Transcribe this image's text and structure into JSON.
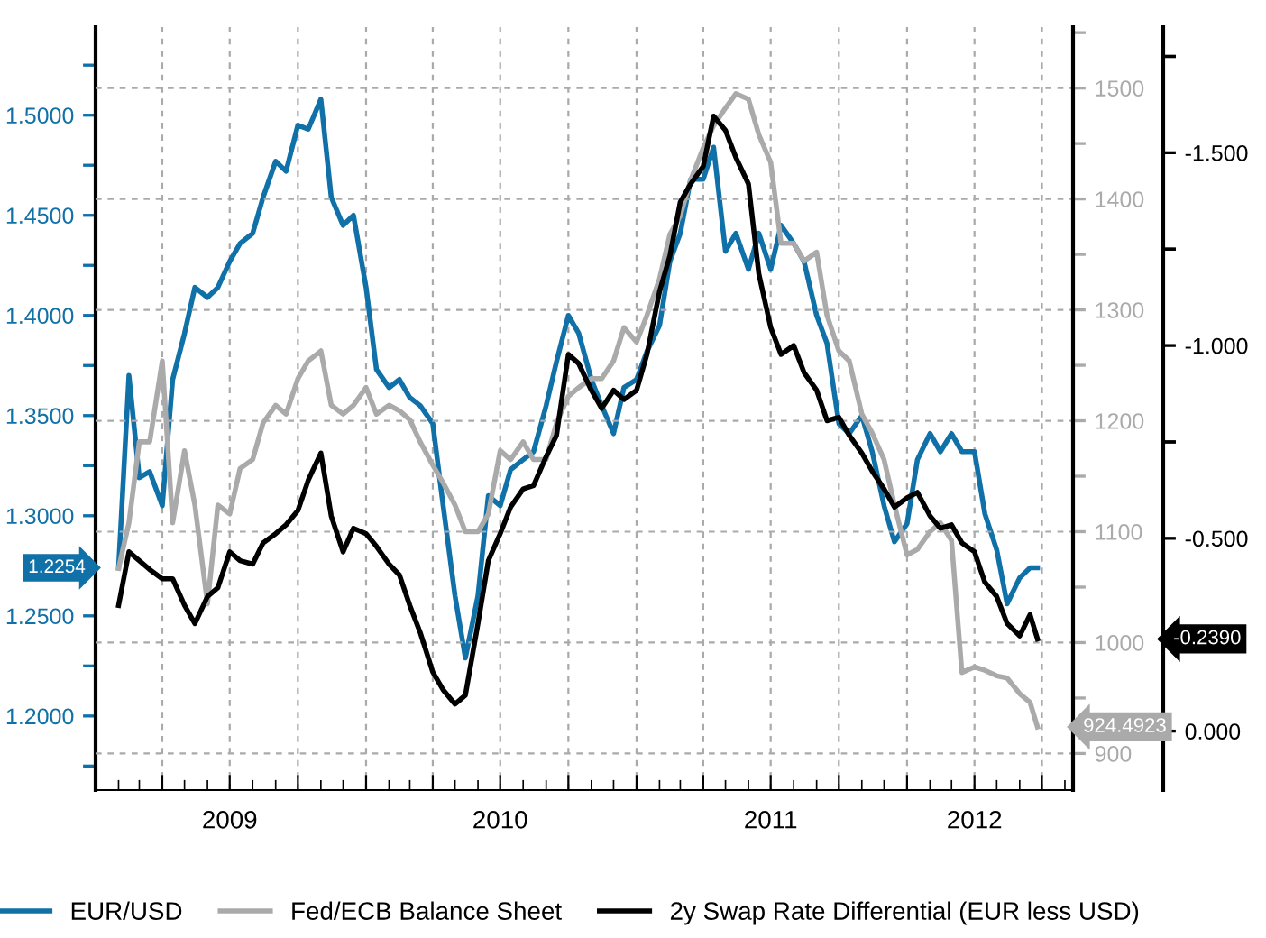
{
  "chart_data": {
    "type": "line",
    "x": [
      "2009-02-01",
      "2009-02-15",
      "2009-03-01",
      "2009-03-15",
      "2009-04-01",
      "2009-04-15",
      "2009-05-01",
      "2009-05-15",
      "2009-06-01",
      "2009-06-15",
      "2009-07-01",
      "2009-07-15",
      "2009-08-01",
      "2009-08-15",
      "2009-09-01",
      "2009-09-15",
      "2009-10-01",
      "2009-10-15",
      "2009-11-01",
      "2009-11-15",
      "2009-12-01",
      "2009-12-15",
      "2010-01-01",
      "2010-01-15",
      "2010-02-01",
      "2010-02-15",
      "2010-03-01",
      "2010-03-15",
      "2010-04-01",
      "2010-04-15",
      "2010-05-01",
      "2010-05-15",
      "2010-06-01",
      "2010-06-15",
      "2010-07-01",
      "2010-07-15",
      "2010-08-01",
      "2010-08-15",
      "2010-09-01",
      "2010-09-15",
      "2010-10-01",
      "2010-10-15",
      "2010-11-01",
      "2010-11-15",
      "2010-12-01",
      "2010-12-15",
      "2011-01-01",
      "2011-01-15",
      "2011-02-01",
      "2011-02-15",
      "2011-03-01",
      "2011-03-15",
      "2011-04-01",
      "2011-04-15",
      "2011-05-01",
      "2011-05-15",
      "2011-06-01",
      "2011-06-15",
      "2011-07-01",
      "2011-07-15",
      "2011-08-01",
      "2011-08-15",
      "2011-09-01",
      "2011-09-15",
      "2011-10-01",
      "2011-10-15",
      "2011-11-01",
      "2011-11-15",
      "2011-12-01",
      "2011-12-15",
      "2012-01-01",
      "2012-01-15",
      "2012-02-01",
      "2012-02-15",
      "2012-03-01",
      "2012-03-15",
      "2012-04-01",
      "2012-04-15",
      "2012-05-01",
      "2012-05-15",
      "2012-06-01",
      "2012-06-15",
      "2012-06-25"
    ],
    "series": [
      {
        "name": "EUR/USD",
        "color": "#1070a8",
        "axis": "y",
        "values": [
          1.274,
          1.37,
          1.319,
          1.322,
          1.305,
          1.368,
          1.391,
          1.414,
          1.409,
          1.414,
          1.427,
          1.436,
          1.441,
          1.459,
          1.477,
          1.472,
          1.495,
          1.493,
          1.508,
          1.459,
          1.445,
          1.45,
          1.414,
          1.373,
          1.364,
          1.368,
          1.359,
          1.355,
          1.346,
          1.305,
          1.26,
          1.229,
          1.26,
          1.31,
          1.305,
          1.323,
          1.328,
          1.332,
          1.355,
          1.377,
          1.4,
          1.391,
          1.368,
          1.355,
          1.341,
          1.364,
          1.368,
          1.382,
          1.395,
          1.427,
          1.441,
          1.468,
          1.468,
          1.484,
          1.432,
          1.441,
          1.423,
          1.441,
          1.423,
          1.445,
          1.436,
          1.427,
          1.4,
          1.386,
          1.346,
          1.341,
          1.35,
          1.332,
          1.305,
          1.287,
          1.296,
          1.328,
          1.341,
          1.332,
          1.341,
          1.332,
          1.332,
          1.301,
          1.283,
          1.256,
          1.269,
          1.274,
          1.274
        ]
      },
      {
        "name": "Fed/ECB Balance Sheet",
        "color": "#aaaaaa",
        "axis": "y2",
        "values": [
          1067,
          1108,
          1181,
          1181,
          1254,
          1108,
          1173,
          1124,
          1035,
          1124,
          1116,
          1157,
          1165,
          1198,
          1214,
          1206,
          1238,
          1254,
          1263,
          1214,
          1206,
          1214,
          1230,
          1206,
          1214,
          1209,
          1201,
          1181,
          1160,
          1144,
          1124,
          1100,
          1100,
          1116,
          1173,
          1165,
          1181,
          1165,
          1165,
          1198,
          1222,
          1230,
          1238,
          1238,
          1254,
          1284,
          1271,
          1295,
          1328,
          1368,
          1385,
          1417,
          1446,
          1466,
          1482,
          1495,
          1490,
          1458,
          1433,
          1360,
          1360,
          1344,
          1352,
          1295,
          1263,
          1254,
          1206,
          1189,
          1165,
          1124,
          1079,
          1084,
          1100,
          1108,
          1092,
          973,
          978,
          975,
          970,
          968,
          954,
          946,
          924
        ]
      },
      {
        "name": "2y Swap Rate Differential (EUR less USD)",
        "color": "#000000",
        "axis": "y3",
        "values": [
          -0.326,
          -0.465,
          -0.442,
          -0.419,
          -0.395,
          -0.395,
          -0.326,
          -0.279,
          -0.349,
          -0.372,
          -0.465,
          -0.442,
          -0.433,
          -0.488,
          -0.512,
          -0.535,
          -0.572,
          -0.651,
          -0.721,
          -0.558,
          -0.465,
          -0.526,
          -0.512,
          -0.479,
          -0.433,
          -0.405,
          -0.326,
          -0.256,
          -0.153,
          -0.107,
          -0.07,
          -0.093,
          -0.279,
          -0.442,
          -0.512,
          -0.581,
          -0.628,
          -0.637,
          -0.712,
          -0.767,
          -0.977,
          -0.953,
          -0.884,
          -0.837,
          -0.884,
          -0.86,
          -0.884,
          -0.977,
          -1.14,
          -1.233,
          -1.372,
          -1.419,
          -1.465,
          -1.595,
          -1.558,
          -1.488,
          -1.419,
          -1.186,
          -1.047,
          -0.977,
          -1.0,
          -0.93,
          -0.884,
          -0.805,
          -0.814,
          -0.767,
          -0.721,
          -0.674,
          -0.628,
          -0.581,
          -0.605,
          -0.619,
          -0.558,
          -0.526,
          -0.535,
          -0.488,
          -0.465,
          -0.386,
          -0.349,
          -0.279,
          -0.247,
          -0.302,
          -0.239
        ]
      }
    ],
    "xlim": [
      "2009-01-01",
      "2012-08-12"
    ],
    "xticks": [
      {
        "value": "2009-01-01",
        "label": null
      },
      {
        "value": "2009-04-01",
        "label": null
      },
      {
        "value": "2009-07-01",
        "label": "2009"
      },
      {
        "value": "2009-10-01",
        "label": null
      },
      {
        "value": "2010-01-01",
        "label": null
      },
      {
        "value": "2010-04-01",
        "label": null
      },
      {
        "value": "2010-07-01",
        "label": "2010"
      },
      {
        "value": "2010-10-01",
        "label": null
      },
      {
        "value": "2011-01-01",
        "label": null
      },
      {
        "value": "2011-04-01",
        "label": null
      },
      {
        "value": "2011-07-01",
        "label": "2011"
      },
      {
        "value": "2011-10-01",
        "label": null
      },
      {
        "value": "2012-01-01",
        "label": null
      },
      {
        "value": "2012-04-01",
        "label": "2012"
      },
      {
        "value": "2012-07-01",
        "label": null
      }
    ],
    "ylim": [
      1.163,
      1.544
    ],
    "yticks": [
      {
        "value": 1.175,
        "label": null
      },
      {
        "value": 1.2,
        "label": "1.2000"
      },
      {
        "value": 1.225,
        "label": null
      },
      {
        "value": 1.25,
        "label": "1.2500"
      },
      {
        "value": 1.275,
        "label": null
      },
      {
        "value": 1.3,
        "label": "1.3000"
      },
      {
        "value": 1.325,
        "label": null
      },
      {
        "value": 1.35,
        "label": "1.3500"
      },
      {
        "value": 1.375,
        "label": null
      },
      {
        "value": 1.4,
        "label": "1.4000"
      },
      {
        "value": 1.425,
        "label": null
      },
      {
        "value": 1.45,
        "label": "1.4500"
      },
      {
        "value": 1.475,
        "label": null
      },
      {
        "value": 1.5,
        "label": "1.5000"
      },
      {
        "value": 1.525,
        "label": null
      }
    ],
    "y2lim": [
      867,
      1555
    ],
    "y2ticks": [
      900,
      {
        "value": 950,
        "label": null
      },
      1000,
      {
        "value": 1050,
        "label": null
      },
      1100,
      {
        "value": 1150,
        "label": null
      },
      1200,
      {
        "value": 1250,
        "label": null
      },
      1300,
      {
        "value": 1350,
        "label": null
      },
      1400,
      {
        "value": 1450,
        "label": null
      },
      1500,
      {
        "value": 1550,
        "label": null
      }
    ],
    "y3lim": [
      0.153,
      -1.826
    ],
    "y3ticks": [
      {
        "value": 0,
        "label": "0.000"
      },
      {
        "value": -0.5,
        "label": "-0.500"
      },
      {
        "value": -1.0,
        "label": "-1.000"
      },
      {
        "value": -1.5,
        "label": "-1.500"
      }
    ],
    "annotations": [
      "1.2254",
      "924.4923",
      "-0.2390"
    ],
    "grid": true,
    "legend": "bottom",
    "line_style": "solid"
  }
}
